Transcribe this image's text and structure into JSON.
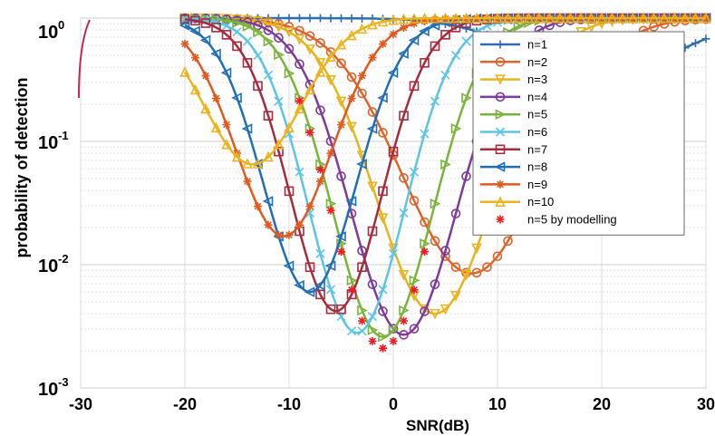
{
  "chart_data": {
    "type": "line",
    "title": "",
    "xlabel": "SNR(dB)",
    "ylabel": "probability of detection",
    "xlim": [
      -30,
      30
    ],
    "ylim": [
      0.001,
      1
    ],
    "yscale": "log",
    "x_ticks": [
      "-30",
      "-20",
      "-10",
      "0",
      "10",
      "20",
      "30"
    ],
    "y_ticks": [
      {
        "base": "10",
        "exp": "0"
      },
      {
        "base": "10",
        "exp": "-1"
      },
      {
        "base": "10",
        "exp": "-2"
      },
      {
        "base": "10",
        "exp": "-3"
      }
    ],
    "grid": true,
    "legend_position": "top-right",
    "series": [
      {
        "name": "n=1",
        "color": "#2e6db4",
        "marker": "plus",
        "minX": 20,
        "minY": 0.35,
        "w": 10,
        "x": [
          -20,
          30
        ]
      },
      {
        "name": "n=2",
        "color": "#e0632a",
        "marker": "circle",
        "minX": 7.5,
        "minY": 0.0085,
        "w": 9.5,
        "x": [
          -20,
          30
        ]
      },
      {
        "name": "n=3",
        "color": "#e8b41e",
        "marker": "triangle-down",
        "minX": 4,
        "minY": 0.004,
        "w": 8,
        "x": [
          -20,
          30
        ]
      },
      {
        "name": "n=4",
        "color": "#7e3b9b",
        "marker": "circle",
        "minX": 1,
        "minY": 0.0027,
        "w": 7.2,
        "x": [
          -20,
          30
        ]
      },
      {
        "name": "n=5",
        "color": "#7ab43a",
        "marker": "triangle-right",
        "minX": -1,
        "minY": 0.0026,
        "w": 6.8,
        "x": [
          -20,
          30
        ]
      },
      {
        "name": "n=6",
        "color": "#5cc5e6",
        "marker": "x",
        "minX": -3.5,
        "minY": 0.0028,
        "w": 6.5,
        "x": [
          -20,
          30
        ]
      },
      {
        "name": "n=7",
        "color": "#a62c3d",
        "marker": "square",
        "minX": -5.5,
        "minY": 0.0042,
        "w": 6.2,
        "x": [
          -20,
          30
        ]
      },
      {
        "name": "n=8",
        "color": "#1f6fb8",
        "marker": "triangle-left",
        "minX": -8,
        "minY": 0.006,
        "w": 6.3,
        "x": [
          -20,
          30
        ]
      },
      {
        "name": "n=9",
        "color": "#e05a20",
        "marker": "asterisk",
        "minX": -10.5,
        "minY": 0.017,
        "w": 6.5,
        "x": [
          -20,
          30
        ]
      },
      {
        "name": "n=10",
        "color": "#ecb31f",
        "marker": "triangle-up",
        "minX": -13.5,
        "minY": 0.065,
        "w": 6.5,
        "x": [
          -20,
          30
        ]
      },
      {
        "name": "n=5 by modelling",
        "color": "#ee1c24",
        "marker": "asterisk",
        "line": false,
        "minX": -1,
        "minY": 0.0021,
        "w": 6.8,
        "x": [
          -9,
          3
        ]
      }
    ]
  }
}
